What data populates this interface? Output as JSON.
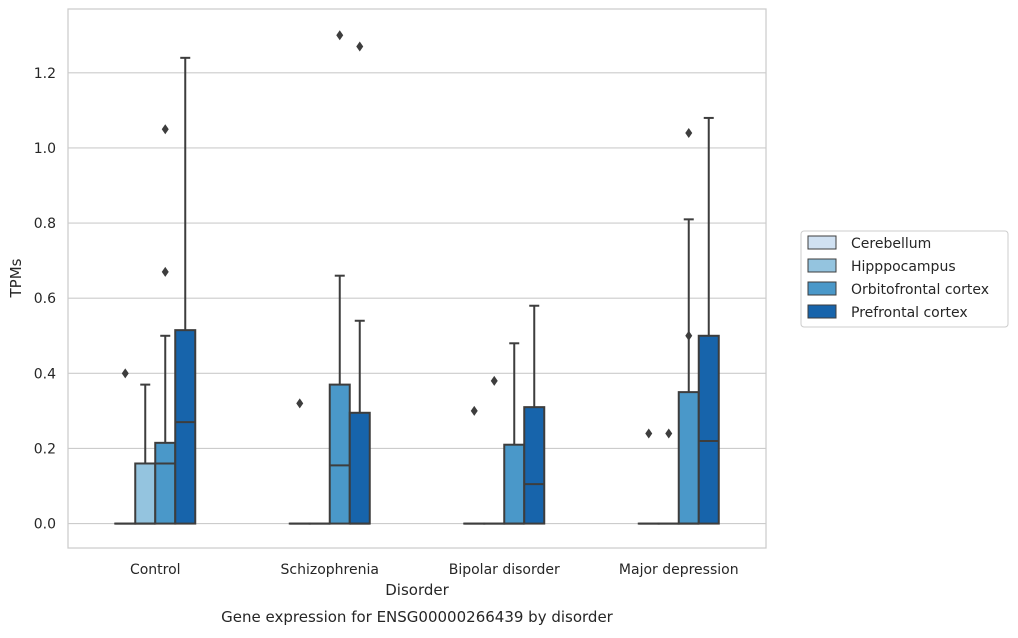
{
  "chart_data": {
    "type": "box",
    "title": "",
    "caption": "Gene expression for ENSG00000266439 by disorder",
    "xlabel": "Disorder",
    "ylabel": "TPMs",
    "categories": [
      "Control",
      "Schizophrenia",
      "Bipolar disorder",
      "Major depression"
    ],
    "ylim": [
      -0.065,
      1.37
    ],
    "yticks": [
      0.0,
      0.2,
      0.4,
      0.6,
      0.8,
      1.0,
      1.2
    ],
    "ytick_labels": [
      "0.0",
      "0.2",
      "0.4",
      "0.6",
      "0.8",
      "1.0",
      "1.2"
    ],
    "grid": true,
    "legend_position": "right",
    "series": [
      {
        "name": "Cerebellum",
        "color": "#d0e1f2",
        "boxes": [
          {
            "q1": 0,
            "median": 0,
            "q3": 0,
            "whisker_low": 0,
            "whisker_high": 0,
            "outliers": [
              0.4
            ]
          },
          {
            "q1": 0,
            "median": 0,
            "q3": 0,
            "whisker_low": 0,
            "whisker_high": 0,
            "outliers": [
              0.32
            ]
          },
          {
            "q1": 0,
            "median": 0,
            "q3": 0,
            "whisker_low": 0,
            "whisker_high": 0,
            "outliers": [
              0.3
            ]
          },
          {
            "q1": 0,
            "median": 0,
            "q3": 0,
            "whisker_low": 0,
            "whisker_high": 0,
            "outliers": [
              0.24
            ]
          }
        ]
      },
      {
        "name": "Hipppocampus",
        "color": "#94c4df",
        "boxes": [
          {
            "q1": 0,
            "median": 0,
            "q3": 0.16,
            "whisker_low": 0,
            "whisker_high": 0.37,
            "outliers": []
          },
          {
            "q1": 0,
            "median": 0,
            "q3": 0,
            "whisker_low": 0,
            "whisker_high": 0,
            "outliers": []
          },
          {
            "q1": 0,
            "median": 0,
            "q3": 0,
            "whisker_low": 0,
            "whisker_high": 0,
            "outliers": [
              0.38
            ]
          },
          {
            "q1": 0,
            "median": 0,
            "q3": 0,
            "whisker_low": 0,
            "whisker_high": 0,
            "outliers": [
              0.24
            ]
          }
        ]
      },
      {
        "name": "Orbitofrontal cortex",
        "color": "#4a98c9",
        "boxes": [
          {
            "q1": 0,
            "median": 0.16,
            "q3": 0.215,
            "whisker_low": 0,
            "whisker_high": 0.5,
            "outliers": [
              0.67,
              1.05
            ]
          },
          {
            "q1": 0,
            "median": 0.155,
            "q3": 0.37,
            "whisker_low": 0,
            "whisker_high": 0.66,
            "outliers": [
              1.3
            ]
          },
          {
            "q1": 0,
            "median": 0,
            "q3": 0.21,
            "whisker_low": 0,
            "whisker_high": 0.48,
            "outliers": []
          },
          {
            "q1": 0,
            "median": 0,
            "q3": 0.35,
            "whisker_low": 0,
            "whisker_high": 0.81,
            "outliers": [
              0.5,
              1.04
            ]
          }
        ]
      },
      {
        "name": "Prefrontal cortex",
        "color": "#1764ab",
        "boxes": [
          {
            "q1": 0,
            "median": 0.27,
            "q3": 0.515,
            "whisker_low": 0,
            "whisker_high": 1.24,
            "outliers": []
          },
          {
            "q1": 0,
            "median": 0,
            "q3": 0.295,
            "whisker_low": 0,
            "whisker_high": 0.54,
            "outliers": [
              1.27
            ]
          },
          {
            "q1": 0,
            "median": 0.105,
            "q3": 0.31,
            "whisker_low": 0,
            "whisker_high": 0.58,
            "outliers": []
          },
          {
            "q1": 0,
            "median": 0.22,
            "q3": 0.5,
            "whisker_low": 0,
            "whisker_high": 1.08,
            "outliers": []
          }
        ]
      }
    ]
  }
}
